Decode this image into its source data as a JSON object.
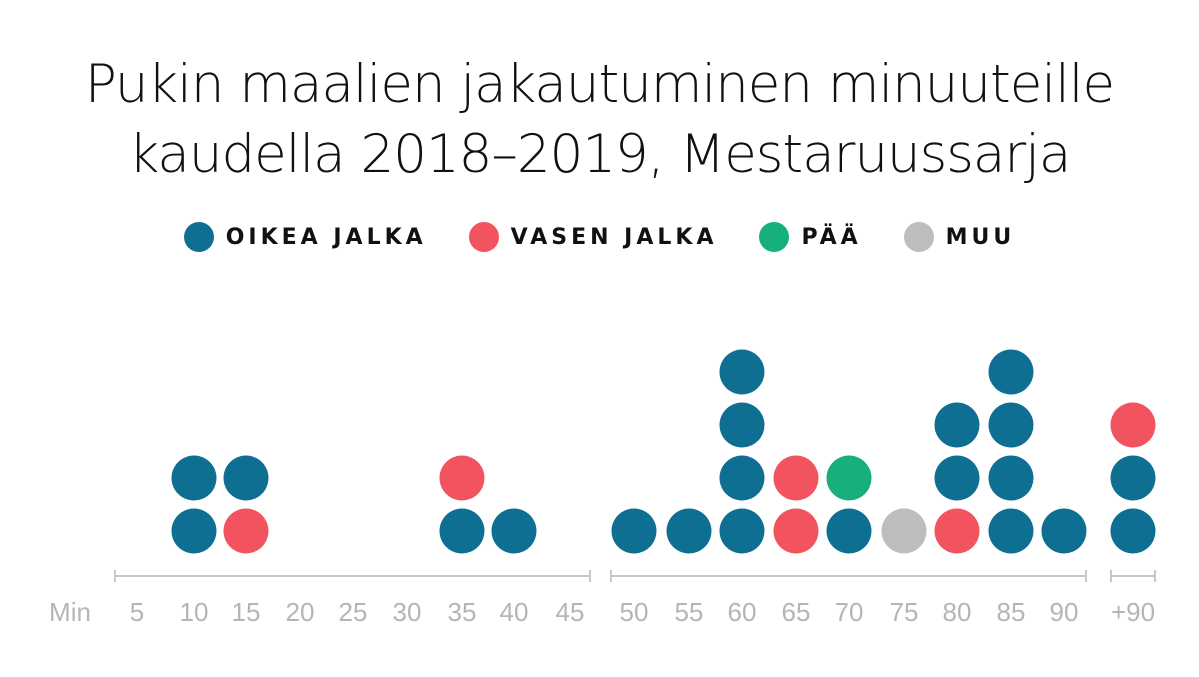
{
  "title_lines": [
    "Pukin maalien jakautuminen minuuteille",
    "kaudella 2018–2019, Mestaruussarja"
  ],
  "colors": {
    "oikea": "#0f6f92",
    "vasen": "#f2545f",
    "paa": "#17b07b",
    "muu": "#bdbdbd",
    "axis": "#c8c8c8",
    "tick_text": "#b5b5b5"
  },
  "legend": [
    {
      "key": "oikea",
      "label": "OIKEA JALKA"
    },
    {
      "key": "vasen",
      "label": "VASEN JALKA"
    },
    {
      "key": "paa",
      "label": "PÄÄ"
    },
    {
      "key": "muu",
      "label": "MUU"
    }
  ],
  "chart_data": {
    "type": "dot-stack",
    "axis_label": "Min",
    "categories": [
      "5",
      "10",
      "15",
      "20",
      "25",
      "30",
      "35",
      "40",
      "45",
      "50",
      "55",
      "60",
      "65",
      "70",
      "75",
      "80",
      "85",
      "90",
      "+90"
    ],
    "stacks": [
      {
        "minute": "5",
        "goals": []
      },
      {
        "minute": "10",
        "goals": [
          "oikea",
          "oikea"
        ]
      },
      {
        "minute": "15",
        "goals": [
          "vasen",
          "oikea"
        ]
      },
      {
        "minute": "20",
        "goals": []
      },
      {
        "minute": "25",
        "goals": []
      },
      {
        "minute": "30",
        "goals": []
      },
      {
        "minute": "35",
        "goals": [
          "oikea",
          "vasen"
        ]
      },
      {
        "minute": "40",
        "goals": [
          "oikea"
        ]
      },
      {
        "minute": "45",
        "goals": []
      },
      {
        "minute": "50",
        "goals": [
          "oikea"
        ]
      },
      {
        "minute": "55",
        "goals": [
          "oikea"
        ]
      },
      {
        "minute": "60",
        "goals": [
          "oikea",
          "oikea",
          "oikea",
          "oikea"
        ]
      },
      {
        "minute": "65",
        "goals": [
          "vasen",
          "vasen"
        ]
      },
      {
        "minute": "70",
        "goals": [
          "oikea",
          "paa"
        ]
      },
      {
        "minute": "75",
        "goals": [
          "muu"
        ]
      },
      {
        "minute": "80",
        "goals": [
          "vasen",
          "oikea",
          "oikea"
        ]
      },
      {
        "minute": "85",
        "goals": [
          "oikea",
          "oikea",
          "oikea",
          "oikea"
        ]
      },
      {
        "minute": "90",
        "goals": [
          "oikea"
        ]
      },
      {
        "minute": "+90",
        "goals": [
          "oikea",
          "oikea",
          "vasen"
        ]
      }
    ],
    "segments": [
      [
        "5",
        "45"
      ],
      [
        "50",
        "90"
      ],
      [
        "+90",
        "+90"
      ]
    ],
    "grid": false,
    "legend_position": "top-center"
  }
}
